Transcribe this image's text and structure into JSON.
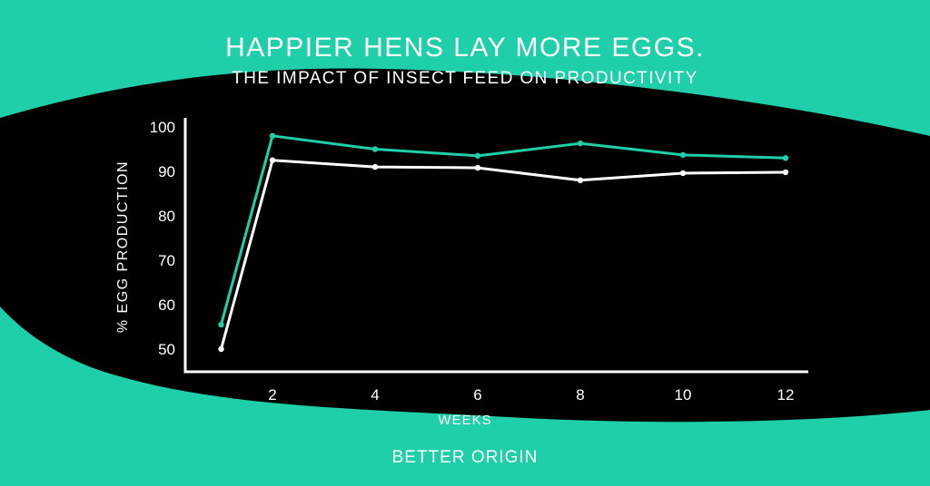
{
  "header": {
    "title": "HAPPIER HENS LAY MORE EGGS.",
    "subtitle": "THE IMPACT OF INSECT FEED ON PRODUCTIVITY"
  },
  "footer": {
    "brand": "BETTER ORIGIN"
  },
  "colors": {
    "background": "#1ecfaa",
    "blob": "#000000",
    "series_teal": "#1ecfaa",
    "series_white": "#ffffff"
  },
  "chart_data": {
    "type": "line",
    "title": "HAPPIER HENS LAY MORE EGGS.",
    "subtitle": "THE IMPACT OF INSECT FEED ON PRODUCTIVITY",
    "xlabel": "WEEKS",
    "ylabel": "% EGG PRODUCTION",
    "x": [
      1,
      2,
      4,
      6,
      8,
      10,
      12
    ],
    "xticks": [
      2,
      4,
      6,
      8,
      10,
      12
    ],
    "yticks": [
      50,
      60,
      70,
      80,
      90,
      100
    ],
    "xlim": [
      0,
      12
    ],
    "ylim": [
      45,
      100
    ],
    "grid": false,
    "series": [
      {
        "color": "#1ecfaa",
        "values": [
          55.5,
          98,
          95,
          93.5,
          96.3,
          93.7,
          93
        ]
      },
      {
        "color": "#ffffff",
        "values": [
          50,
          92.5,
          91,
          90.8,
          88,
          89.6,
          89.8
        ]
      }
    ]
  }
}
